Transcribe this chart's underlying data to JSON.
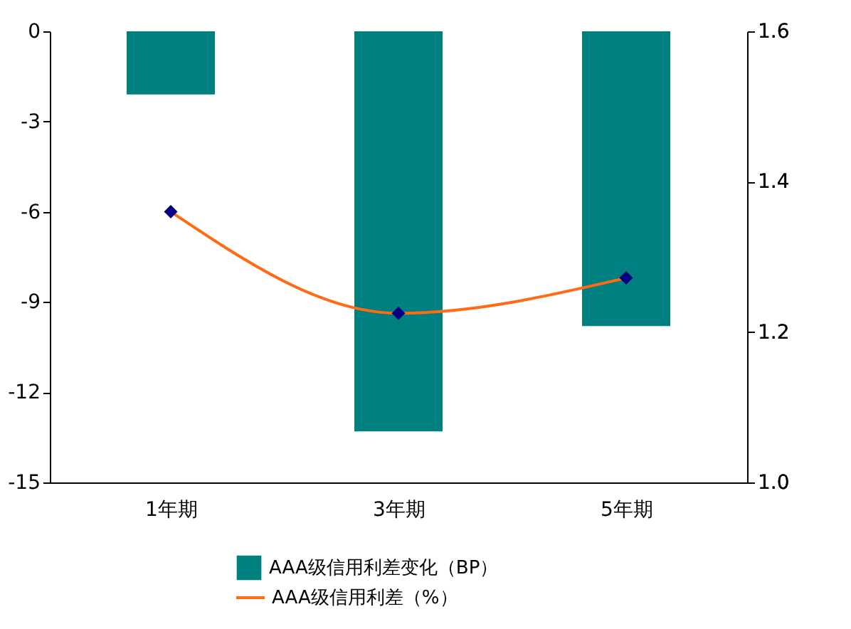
{
  "chart_data": {
    "type": "bar",
    "categories": [
      "1年期",
      "3年期",
      "5年期"
    ],
    "series": [
      {
        "name": "AAA级信用利差变化（BP）",
        "color": "#008080",
        "values": [
          -2.1,
          -13.3,
          -9.8
        ]
      },
      {
        "name": "AAA级信用利差（%）",
        "type": "line",
        "axis": "y2",
        "color": "#ff6a13",
        "marker": "diamond",
        "values": [
          1.36,
          1.225,
          1.272
        ]
      }
    ],
    "ylim": [
      -15,
      0
    ],
    "yticks": [
      -15,
      -12,
      -9,
      -6,
      -3,
      0
    ],
    "y2lim": [
      1.0,
      1.6
    ],
    "y2ticks": [
      {
        "value": 1.0,
        "label": "1.0"
      },
      {
        "value": 1.2,
        "label": "1.2"
      },
      {
        "value": 1.4,
        "label": "1.4"
      },
      {
        "value": 1.6,
        "label": "1.6"
      }
    ],
    "grid": false,
    "legend": "bottom"
  }
}
